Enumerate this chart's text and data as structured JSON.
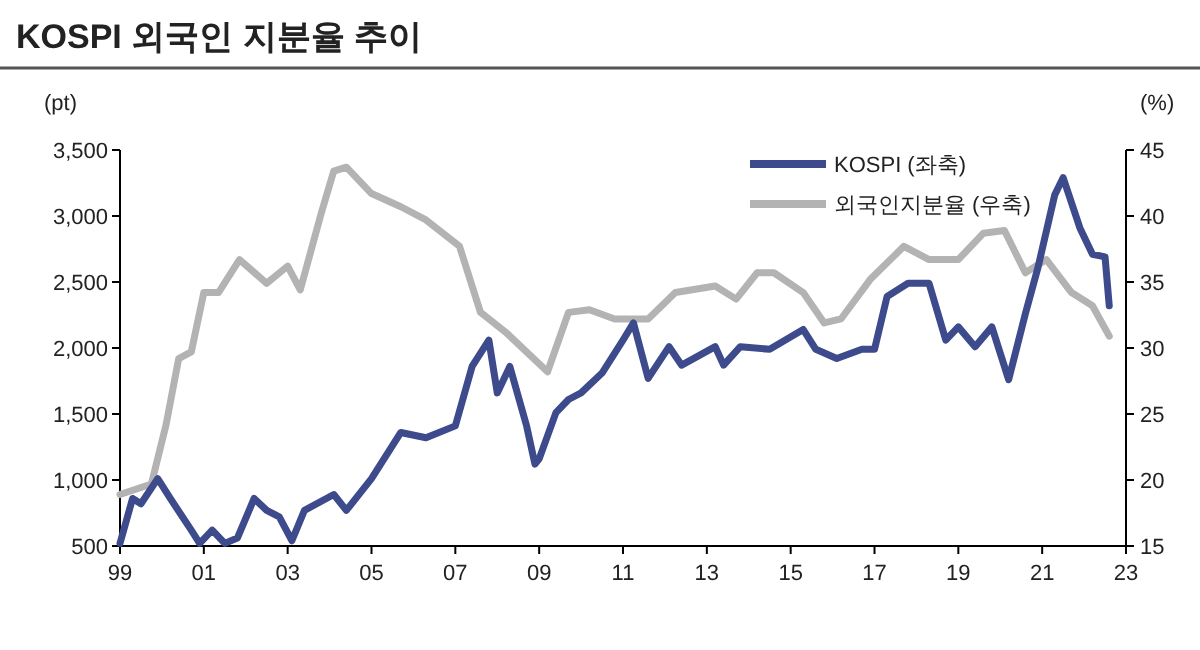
{
  "chart_data": {
    "type": "line",
    "title": "KOSPI 외국인 지분율 추이",
    "ylabel": "(pt)",
    "y2label": "(%)",
    "xlim": [
      1999,
      2023
    ],
    "xticks": [
      {
        "value": 1999,
        "label": "99"
      },
      {
        "value": 2001,
        "label": "01"
      },
      {
        "value": 2003,
        "label": "03"
      },
      {
        "value": 2005,
        "label": "05"
      },
      {
        "value": 2007,
        "label": "07"
      },
      {
        "value": 2009,
        "label": "09"
      },
      {
        "value": 2011,
        "label": "11"
      },
      {
        "value": 2013,
        "label": "13"
      },
      {
        "value": 2015,
        "label": "15"
      },
      {
        "value": 2017,
        "label": "17"
      },
      {
        "value": 2019,
        "label": "19"
      },
      {
        "value": 2021,
        "label": "21"
      },
      {
        "value": 2023,
        "label": "23"
      }
    ],
    "ylim": [
      500,
      3500
    ],
    "yticks": [
      {
        "value": 500,
        "label": "500"
      },
      {
        "value": 1000,
        "label": "1,000"
      },
      {
        "value": 1500,
        "label": "1,500"
      },
      {
        "value": 2000,
        "label": "2,000"
      },
      {
        "value": 2500,
        "label": "2,500"
      },
      {
        "value": 3000,
        "label": "3,000"
      },
      {
        "value": 3500,
        "label": "3,500"
      }
    ],
    "y2lim": [
      15,
      45
    ],
    "y2ticks": [
      15,
      20,
      25,
      30,
      35,
      40,
      45
    ],
    "grid": false,
    "legend": "top right",
    "line_style": "solid",
    "series": [
      {
        "name": "KOSPI (좌축)",
        "color": "#3d4a8c",
        "axis": "y",
        "x": [
          1999.0,
          1999.3,
          1999.5,
          1999.9,
          2000.2,
          2000.7,
          2000.9,
          2001.2,
          2001.5,
          2001.8,
          2002.2,
          2002.5,
          2002.8,
          2003.1,
          2003.4,
          2004.1,
          2004.4,
          2005.0,
          2005.7,
          2006.3,
          2007.0,
          2007.4,
          2007.8,
          2008.0,
          2008.3,
          2008.7,
          2008.9,
          2009.0,
          2009.4,
          2009.7,
          2010.0,
          2010.5,
          2011.0,
          2011.25,
          2011.6,
          2012.1,
          2012.4,
          2013.2,
          2013.4,
          2013.8,
          2014.5,
          2015.3,
          2015.6,
          2016.1,
          2016.7,
          2017.0,
          2017.3,
          2017.8,
          2018.3,
          2018.7,
          2019.0,
          2019.4,
          2019.8,
          2020.2,
          2020.6,
          2020.9,
          2021.3,
          2021.5,
          2021.9,
          2022.2,
          2022.5,
          2022.6
        ],
        "values": [
          520,
          860,
          820,
          1010,
          860,
          620,
          520,
          620,
          520,
          560,
          860,
          770,
          720,
          540,
          770,
          890,
          770,
          1010,
          1360,
          1320,
          1410,
          1860,
          2060,
          1660,
          1860,
          1410,
          1120,
          1160,
          1510,
          1610,
          1660,
          1810,
          2060,
          2190,
          1770,
          2010,
          1870,
          2010,
          1870,
          2010,
          1990,
          2140,
          1990,
          1920,
          1990,
          1990,
          2390,
          2490,
          2490,
          2060,
          2160,
          2010,
          2160,
          1760,
          2260,
          2610,
          3160,
          3290,
          2910,
          2710,
          2690,
          2320
        ]
      },
      {
        "name": "외국인지분율 (우축)",
        "color": "#b3b3b3",
        "axis": "y2",
        "x": [
          1999.0,
          1999.75,
          2000.1,
          2000.4,
          2000.7,
          2001.0,
          2001.35,
          2001.85,
          2002.5,
          2003.0,
          2003.3,
          2003.8,
          2004.1,
          2004.4,
          2005.0,
          2005.7,
          2006.3,
          2007.1,
          2007.6,
          2008.2,
          2009.2,
          2009.7,
          2010.2,
          2010.8,
          2011.6,
          2012.25,
          2013.2,
          2013.7,
          2014.2,
          2014.6,
          2015.3,
          2015.8,
          2016.2,
          2016.9,
          2017.7,
          2018.3,
          2019.0,
          2019.6,
          2020.1,
          2020.6,
          2021.1,
          2021.7,
          2022.2,
          2022.6
        ],
        "values": [
          18.9,
          19.7,
          24.2,
          29.2,
          29.7,
          34.2,
          34.2,
          36.7,
          34.9,
          36.2,
          34.4,
          40.2,
          43.4,
          43.7,
          41.7,
          40.7,
          39.7,
          37.7,
          32.7,
          31.2,
          28.2,
          32.7,
          32.9,
          32.2,
          32.2,
          34.2,
          34.7,
          33.7,
          35.7,
          35.7,
          34.2,
          31.9,
          32.2,
          35.2,
          37.7,
          36.7,
          36.7,
          38.7,
          38.9,
          35.7,
          36.7,
          34.2,
          33.2,
          30.9
        ]
      }
    ]
  }
}
